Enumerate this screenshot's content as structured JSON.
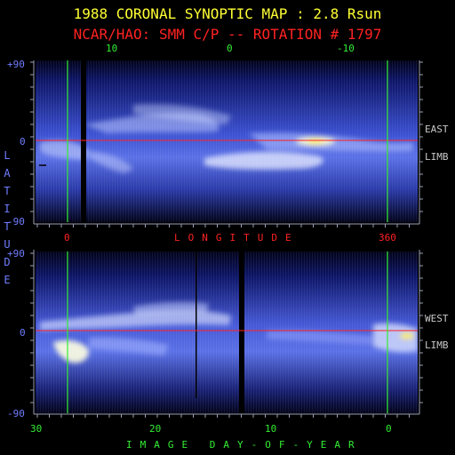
{
  "title": "1988 CORONAL SYNOPTIC MAP : 2.8 Rsun",
  "subtitle": "NCAR/HAO: SMM C/P -- ROTATION # 1797",
  "top_axis_ticks": [
    "10",
    "0",
    "-10"
  ],
  "longitude_label": "LONGITUDE",
  "longitude_ticks": [
    "0",
    "360"
  ],
  "latitude_label": "LATITUDE",
  "upper_panel": {
    "lat_ticks": [
      "+90",
      "0",
      "-90"
    ],
    "limb_label_1": "EAST",
    "limb_label_2": "LIMB"
  },
  "lower_panel": {
    "lat_ticks": [
      "+90",
      "0",
      "-90"
    ],
    "limb_label_1": "WEST",
    "limb_label_2": "LIMB"
  },
  "day_ticks": [
    "30",
    "20",
    "10",
    "0"
  ],
  "day_label": "IMAGE DAY-OF-YEAR",
  "colors": {
    "title": "#ffff33",
    "subtitle": "#ff2222",
    "axis_green": "#33ee33",
    "axis_blue": "#6f7dff",
    "equator_line": "#ff2222"
  }
}
